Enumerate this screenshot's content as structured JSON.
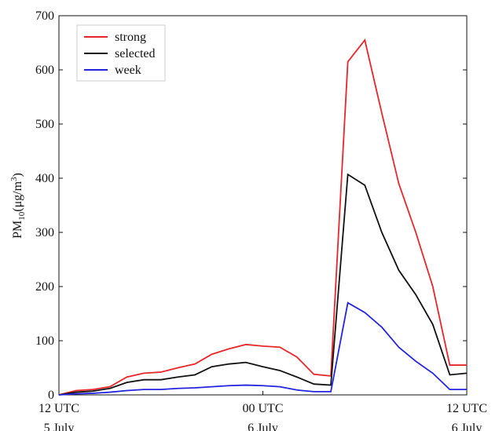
{
  "chart_data": {
    "type": "line",
    "ylabel": {
      "base": "PM",
      "sub": "10",
      "unit": "(μg/m",
      "sup": "3",
      "close": ")"
    },
    "x": [
      0,
      1,
      2,
      3,
      4,
      5,
      6,
      7,
      8,
      9,
      10,
      11,
      12,
      13,
      14,
      15,
      16,
      17,
      18,
      19,
      20,
      21,
      22,
      23,
      24
    ],
    "xlim": [
      0,
      24
    ],
    "xticks": [
      {
        "value": 0,
        "label": "12 UTC\n5 July"
      },
      {
        "value": 12,
        "label": "00 UTC\n6 July"
      },
      {
        "value": 24,
        "label": "12 UTC\n6 July"
      }
    ],
    "ylim": [
      0,
      700
    ],
    "yticks": [
      0,
      100,
      200,
      300,
      400,
      500,
      600,
      700
    ],
    "grid": false,
    "legend": "upper-left",
    "series": [
      {
        "name": "strong",
        "color": "#e8262a",
        "values": [
          0,
          8,
          10,
          15,
          33,
          40,
          42,
          50,
          57,
          75,
          85,
          93,
          90,
          88,
          70,
          38,
          35,
          615,
          655,
          520,
          390,
          300,
          200,
          55,
          55
        ]
      },
      {
        "name": "selected",
        "color": "#111111",
        "values": [
          0,
          5,
          7,
          12,
          23,
          28,
          28,
          33,
          37,
          52,
          57,
          60,
          52,
          45,
          33,
          20,
          18,
          407,
          387,
          300,
          230,
          185,
          130,
          37,
          40
        ]
      },
      {
        "name": "week",
        "color": "#2323e0",
        "values": [
          0,
          2,
          3,
          5,
          8,
          10,
          10,
          12,
          13,
          15,
          17,
          18,
          17,
          15,
          9,
          6,
          6,
          170,
          152,
          125,
          88,
          62,
          40,
          10,
          10
        ]
      }
    ]
  }
}
